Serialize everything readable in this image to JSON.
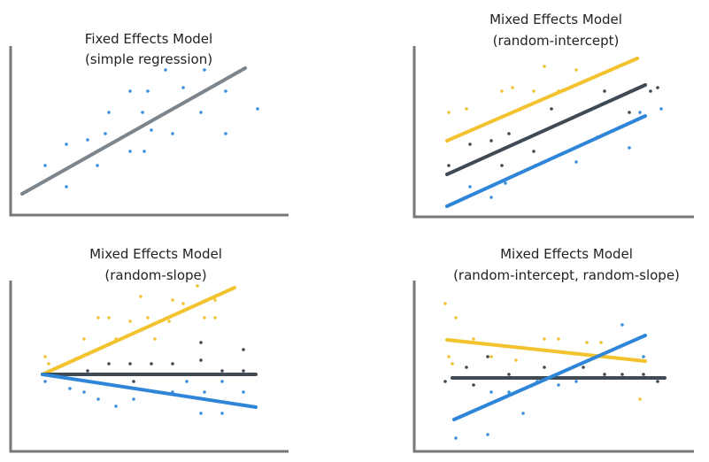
{
  "colors": {
    "axis": "#777777",
    "fixed_line": "#7c858d",
    "dark": "#3f4a54",
    "yellow": "#f3c22f",
    "blue": "#2f86d8",
    "point_blue": "#3d8fd6"
  },
  "panels": [
    {
      "key": "fixed",
      "title_line1": "Fixed Effects Model",
      "title_line2": "(simple regression)"
    },
    {
      "key": "random_intercept",
      "title_line1": "Mixed Effects Model",
      "title_line2": "(random-intercept)"
    },
    {
      "key": "random_slope",
      "title_line1": "Mixed Effects Model",
      "title_line2": "(random-slope)"
    },
    {
      "key": "random_both",
      "title_line1": "Mixed Effects Model",
      "title_line2": "(random-intercept, random-slope)"
    }
  ]
}
